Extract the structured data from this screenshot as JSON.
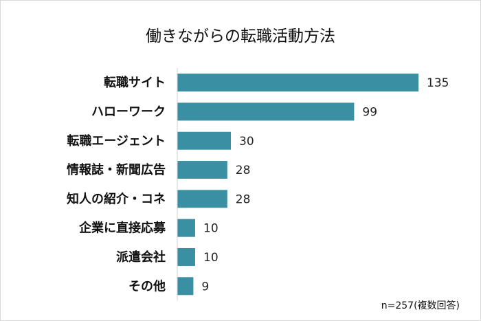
{
  "chart_data": {
    "type": "bar",
    "orientation": "horizontal",
    "title": "働きながらの転職活動方法",
    "categories": [
      "転職サイト",
      "ハローワーク",
      "転職エージェント",
      "情報誌・新聞広告",
      "知人の紹介・コネ",
      "企業に直接応募",
      "派遣会社",
      "その他"
    ],
    "values": [
      135,
      99,
      30,
      28,
      28,
      10,
      10,
      9
    ],
    "xlim": [
      0,
      140
    ],
    "grid": false,
    "bar_color": "#3a8fa3",
    "data_labels": true
  },
  "note": "n=257(複数回答)"
}
